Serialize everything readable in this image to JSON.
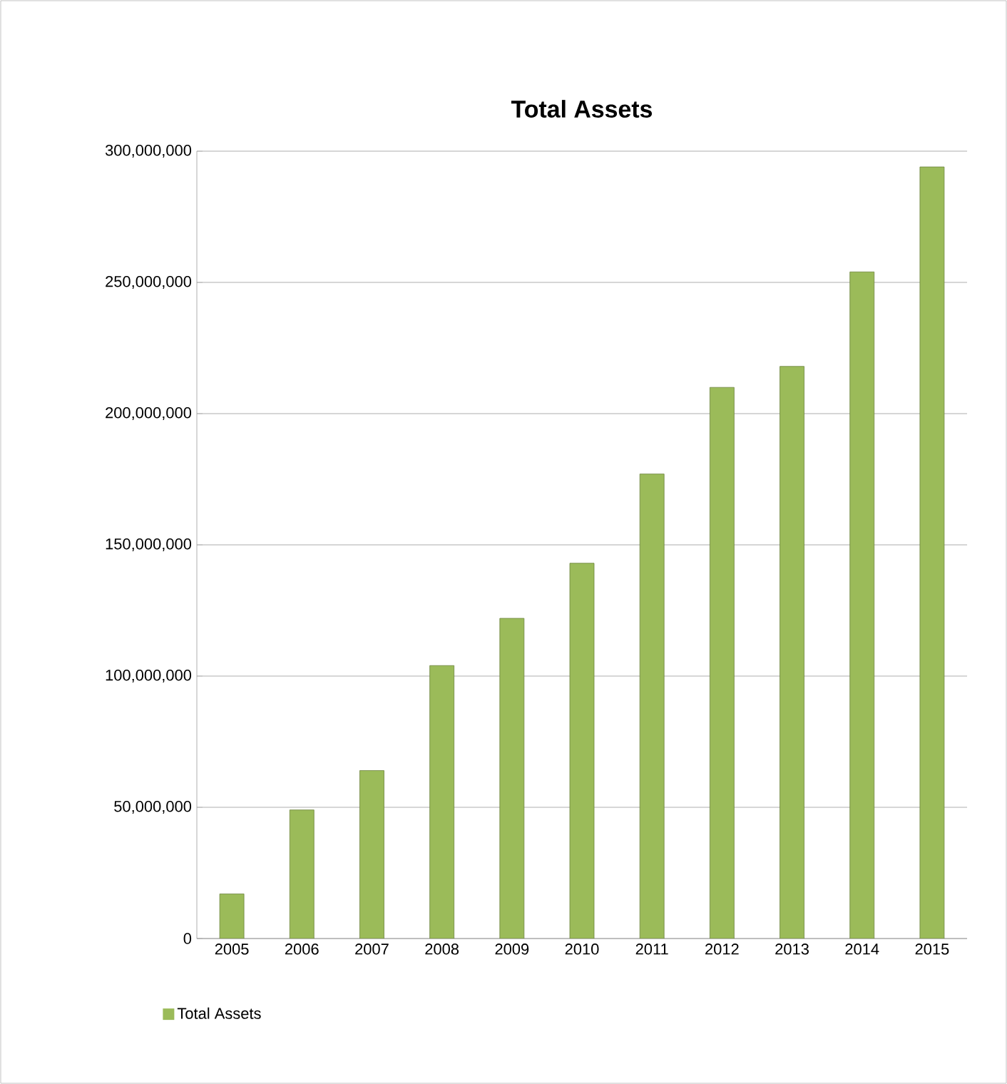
{
  "chart_data": {
    "type": "bar",
    "title": "Total Assets",
    "categories": [
      "2005",
      "2006",
      "2007",
      "2008",
      "2009",
      "2010",
      "2011",
      "2012",
      "2013",
      "2014",
      "2015"
    ],
    "series": [
      {
        "name": "Total Assets",
        "color": "#9bbb59",
        "values": [
          17000000,
          49000000,
          64000000,
          104000000,
          122000000,
          143000000,
          177000000,
          210000000,
          218000000,
          254000000,
          294000000
        ]
      }
    ],
    "ylim": [
      0,
      300000000
    ],
    "yticks": [
      0,
      {
        "value": 50000000,
        "label": "50,000,000"
      },
      {
        "value": 100000000,
        "label": "100,000,000"
      },
      {
        "value": 150000000,
        "label": "150,000,000"
      },
      {
        "value": 200000000,
        "label": "200,000,000"
      },
      {
        "value": 250000000,
        "label": "250,000,000"
      },
      {
        "value": 300000000,
        "label": "300,000,000"
      }
    ],
    "grid": "y",
    "legend": "bottom left"
  }
}
